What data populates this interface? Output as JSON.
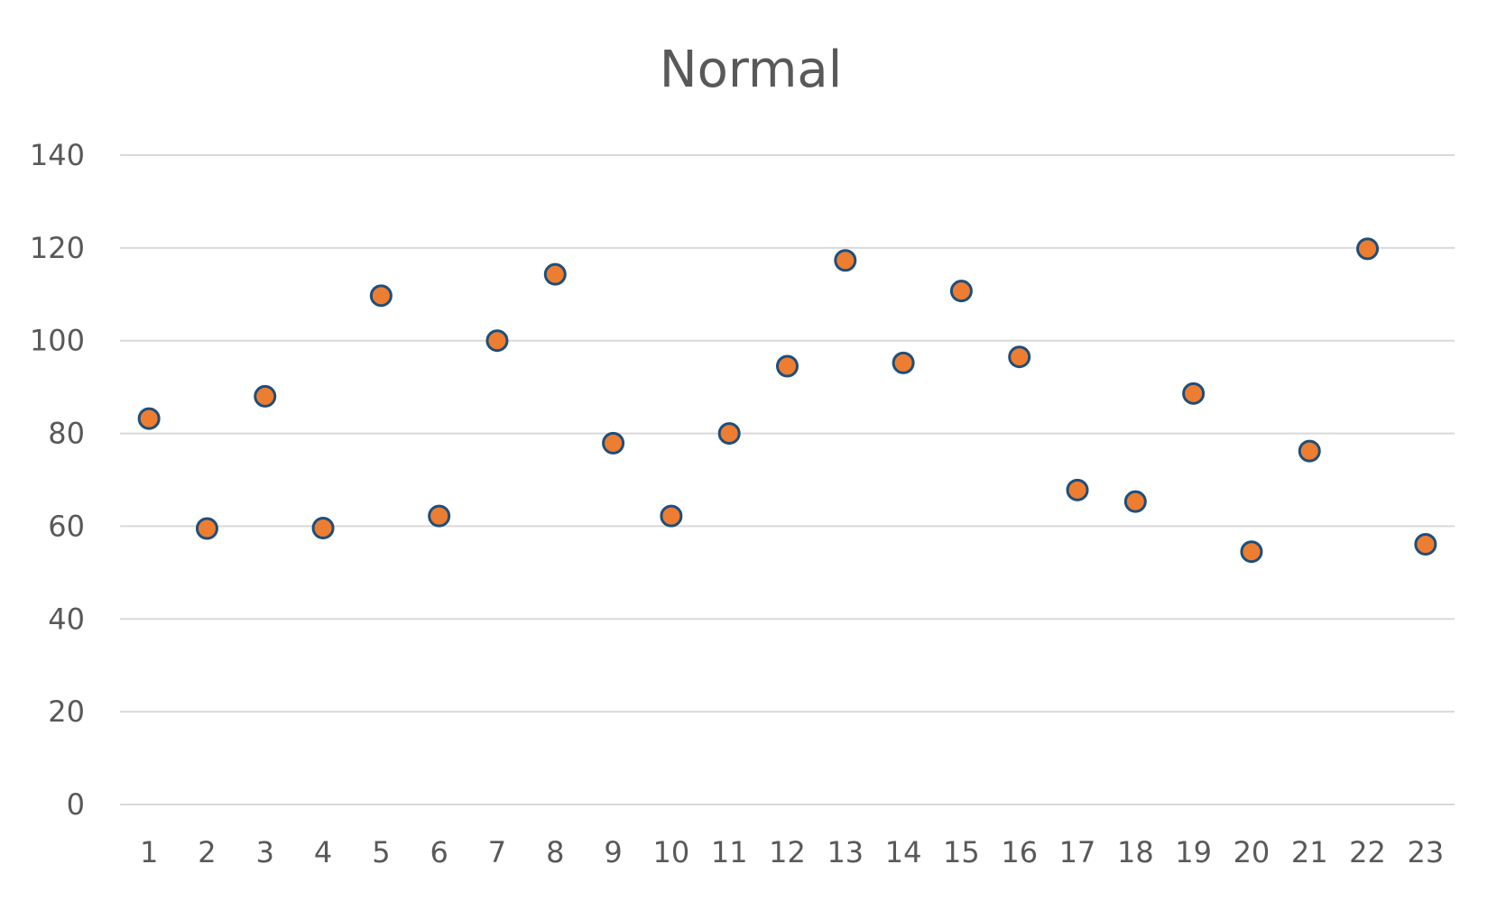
{
  "chart_data": {
    "type": "scatter",
    "title": "Normal",
    "xlabel": "",
    "ylabel": "",
    "x": [
      1,
      2,
      3,
      4,
      5,
      6,
      7,
      8,
      9,
      10,
      11,
      12,
      13,
      14,
      15,
      16,
      17,
      18,
      19,
      20,
      21,
      22,
      23
    ],
    "x_tick_labels": [
      "1",
      "2",
      "3",
      "4",
      "5",
      "6",
      "7",
      "8",
      "9",
      "10",
      "11",
      "12",
      "13",
      "14",
      "15",
      "16",
      "17",
      "18",
      "19",
      "20",
      "21",
      "22",
      "23"
    ],
    "series": [
      {
        "values": [
          83.2,
          59.5,
          88.0,
          59.6,
          109.7,
          62.2,
          100.0,
          114.3,
          77.9,
          62.2,
          80.0,
          94.5,
          117.3,
          95.2,
          110.7,
          96.5,
          67.8,
          65.3,
          88.6,
          54.5,
          76.2,
          119.8,
          56.1
        ]
      }
    ],
    "ylim": [
      0,
      140
    ],
    "y_ticks": [
      0,
      20,
      40,
      60,
      80,
      100,
      120,
      140
    ],
    "y_tick_labels": [
      "0",
      "20",
      "40",
      "60",
      "80",
      "100",
      "120",
      "140"
    ],
    "grid": true,
    "legend": "none",
    "colors": {
      "marker_fill": "#ED7D31",
      "marker_stroke": "#1F4E79",
      "gridline": "#D9D9D9",
      "text": "#595959"
    }
  }
}
